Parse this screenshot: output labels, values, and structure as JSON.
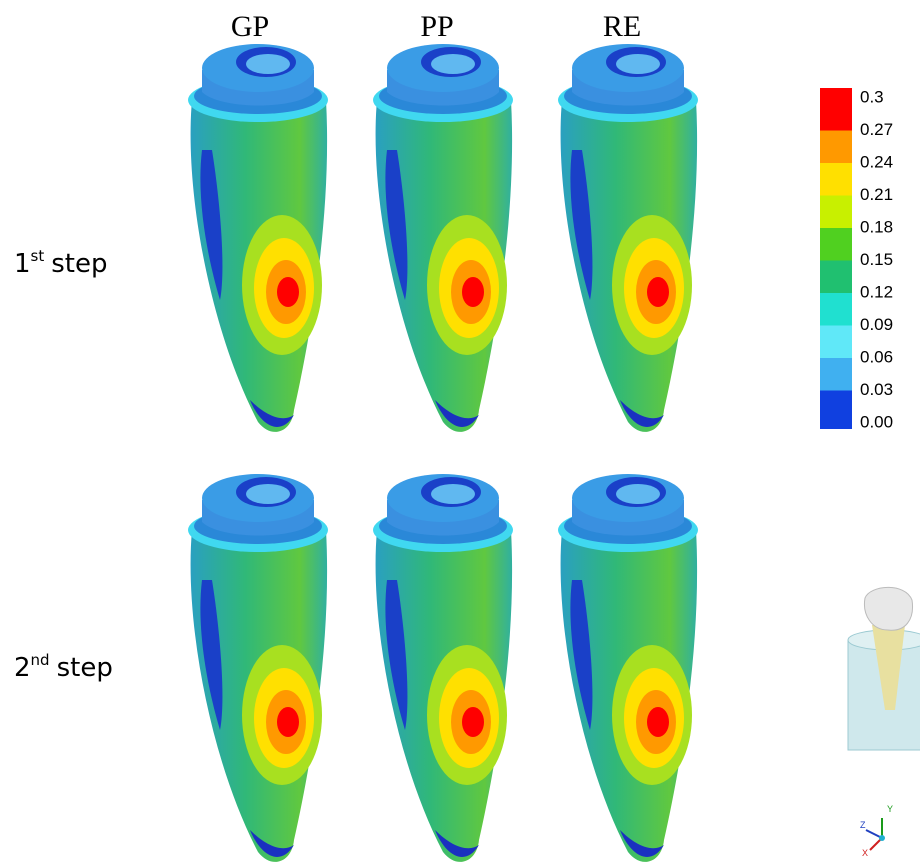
{
  "columns": [
    "GP",
    "PP",
    "RE"
  ],
  "rows": [
    {
      "number": "1",
      "suffix": "st",
      "word": "step"
    },
    {
      "number": "2",
      "suffix": "nd",
      "word": "step"
    }
  ],
  "legend": {
    "labels": [
      "0.3",
      "0.27",
      "0.24",
      "0.21",
      "0.18",
      "0.15",
      "0.12",
      "0.09",
      "0.06",
      "0.03",
      "0.00"
    ],
    "colors": [
      "#ff0000",
      "#ff9900",
      "#ffe000",
      "#c8f000",
      "#50d020",
      "#20c070",
      "#20e0d0",
      "#60e8f8",
      "#40b0f0",
      "#1040e0"
    ]
  },
  "axes": {
    "x": "X",
    "y": "Y",
    "z": "Z"
  }
}
